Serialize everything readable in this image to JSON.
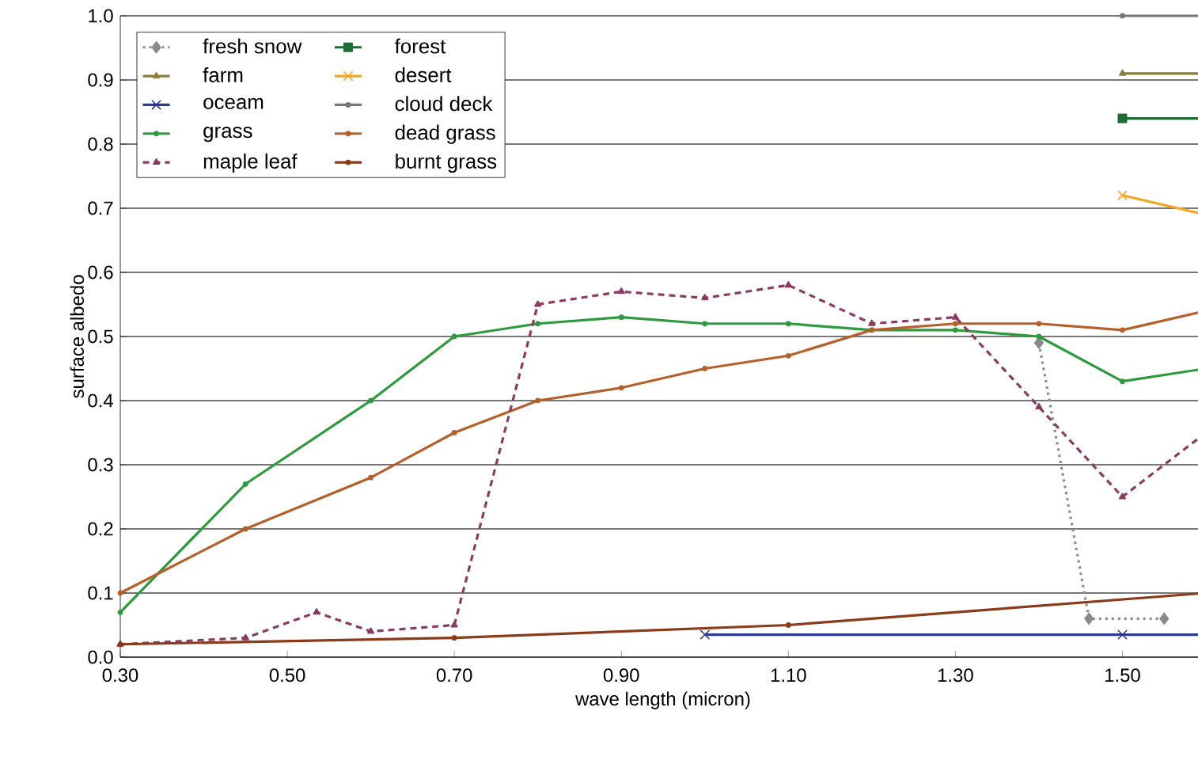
{
  "chart_data": {
    "type": "line",
    "xlabel": "wave length (micron)",
    "ylabel": "surface albedo",
    "xlim": [
      0.3,
      1.6
    ],
    "ylim": [
      0,
      1.0
    ],
    "xticks": [
      {
        "value": 0.3,
        "label": "0.30"
      },
      {
        "value": 0.5,
        "label": "0.50"
      },
      {
        "value": 0.7,
        "label": "0.70"
      },
      {
        "value": 0.9,
        "label": "0.90"
      },
      {
        "value": 1.1,
        "label": "1.10"
      },
      {
        "value": 1.3,
        "label": "1.30"
      },
      {
        "value": 1.5,
        "label": "1.50"
      }
    ],
    "yticks": [
      {
        "value": 0,
        "label": "0.0"
      },
      0.1,
      0.2,
      0.3,
      0.4,
      0.5,
      0.6,
      0.7,
      0.8,
      0.9,
      {
        "value": 1.0,
        "label": "1.0"
      }
    ],
    "grid": "y",
    "legend": "top left",
    "series": [
      {
        "name": "fresh snow",
        "color": "#8a8a8a",
        "marker": "diamond",
        "line_style": "dotted",
        "x": [
          1.4,
          1.46,
          1.55
        ],
        "values": [
          0.49,
          0.06,
          0.06
        ]
      },
      {
        "name": "forest",
        "color": "#1e6b35",
        "marker": "square",
        "line_style": "solid",
        "x": [
          1.5,
          1.6
        ],
        "values": [
          0.84,
          0.84
        ]
      },
      {
        "name": "farm",
        "color": "#8b7d3a",
        "marker": "triangle",
        "line_style": "solid",
        "x": [
          1.5,
          1.6
        ],
        "values": [
          0.91,
          0.91
        ]
      },
      {
        "name": "desert",
        "color": "#f5a623",
        "marker": "cross",
        "line_style": "solid",
        "x": [
          1.5,
          1.6
        ],
        "values": [
          0.72,
          0.69
        ]
      },
      {
        "name": "oceam",
        "color": "#2b3990",
        "marker": "cross",
        "line_style": "solid",
        "x": [
          1.0,
          1.5,
          1.6
        ],
        "values": [
          0.035,
          0.035,
          0.035
        ]
      },
      {
        "name": "cloud deck",
        "color": "#777777",
        "marker": "circle",
        "line_style": "solid",
        "x": [
          1.5,
          1.6
        ],
        "values": [
          1.0,
          1.0
        ]
      },
      {
        "name": "grass",
        "color": "#2e9a3e",
        "marker": "circle",
        "line_style": "solid",
        "x": [
          0.3,
          0.45,
          0.6,
          0.7,
          0.8,
          0.9,
          1.0,
          1.1,
          1.2,
          1.3,
          1.4,
          1.5,
          1.6
        ],
        "values": [
          0.07,
          0.27,
          0.4,
          0.5,
          0.52,
          0.53,
          0.52,
          0.52,
          0.51,
          0.51,
          0.5,
          0.43,
          0.45
        ]
      },
      {
        "name": "dead grass",
        "color": "#b5602a",
        "marker": "circle",
        "line_style": "solid",
        "x": [
          0.3,
          0.45,
          0.6,
          0.7,
          0.8,
          0.9,
          1.0,
          1.1,
          1.2,
          1.3,
          1.4,
          1.5,
          1.6
        ],
        "values": [
          0.1,
          0.2,
          0.28,
          0.35,
          0.4,
          0.42,
          0.45,
          0.47,
          0.51,
          0.52,
          0.52,
          0.51,
          0.54
        ]
      },
      {
        "name": "maple leaf",
        "color": "#8b3a62",
        "marker": "triangle",
        "line_style": "dashed",
        "x": [
          0.3,
          0.45,
          0.535,
          0.6,
          0.7,
          0.8,
          0.9,
          1.0,
          1.1,
          1.2,
          1.3,
          1.4,
          1.5,
          1.6
        ],
        "values": [
          0.02,
          0.03,
          0.07,
          0.04,
          0.05,
          0.55,
          0.57,
          0.56,
          0.58,
          0.52,
          0.53,
          0.39,
          0.25,
          0.35
        ]
      },
      {
        "name": "burnt grass",
        "color": "#8b3a1a",
        "marker": "circle",
        "line_style": "solid",
        "x": [
          0.3,
          0.7,
          1.1,
          1.6
        ],
        "values": [
          0.02,
          0.03,
          0.05,
          0.1
        ]
      }
    ]
  }
}
